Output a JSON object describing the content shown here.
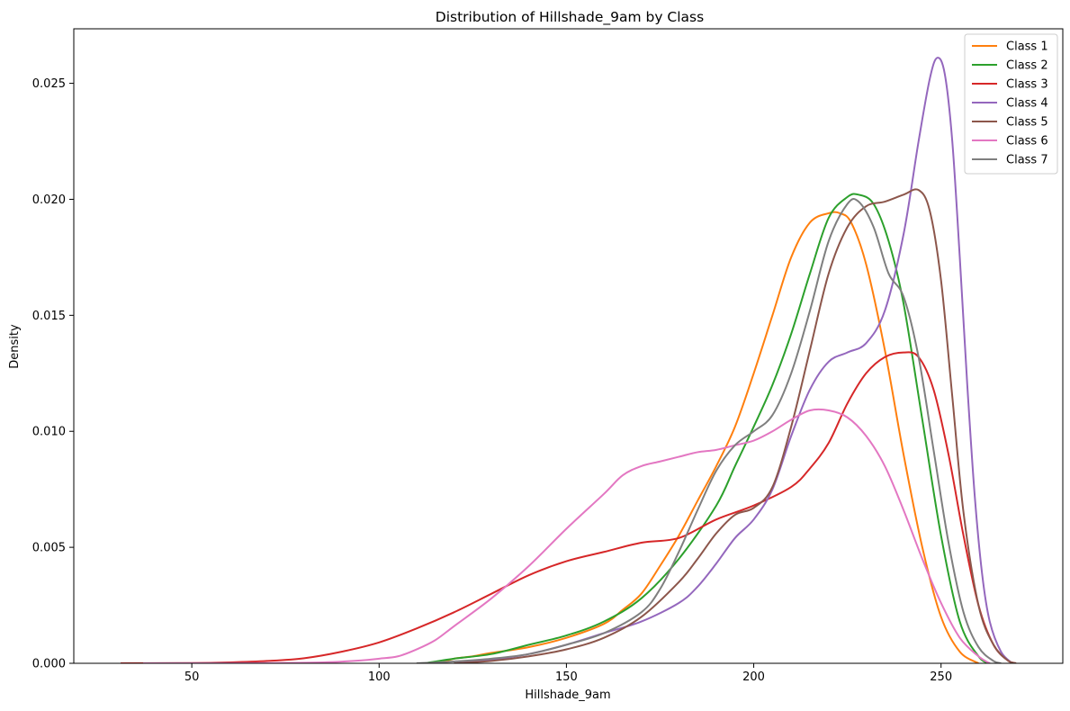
{
  "chart_data": {
    "type": "line",
    "title": "Distribution of Hillshade_9am by Class",
    "xlabel": "Hillshade_9am",
    "ylabel": "Density",
    "xlim": [
      18.5,
      282.5
    ],
    "ylim": [
      0,
      0.02735
    ],
    "xticks": [
      50,
      100,
      150,
      200,
      250
    ],
    "xtick_labels": [
      "50",
      "100",
      "150",
      "200",
      "250"
    ],
    "yticks": [
      0,
      0.005,
      0.01,
      0.015,
      0.02,
      0.025
    ],
    "ytick_labels": [
      "0.000",
      "0.005",
      "0.010",
      "0.015",
      "0.020",
      "0.025"
    ],
    "grid": false,
    "legend_position": "top-right",
    "series": [
      {
        "name": "Class 1",
        "color": "#ff7f0e",
        "points": [
          [
            116,
            0
          ],
          [
            120,
            0.0002
          ],
          [
            125,
            0.0003
          ],
          [
            130,
            0.00045
          ],
          [
            140,
            0.0007
          ],
          [
            150,
            0.0011
          ],
          [
            160,
            0.0017
          ],
          [
            165,
            0.0023
          ],
          [
            170,
            0.003
          ],
          [
            175,
            0.0042
          ],
          [
            180,
            0.0055
          ],
          [
            185,
            0.007
          ],
          [
            190,
            0.0085
          ],
          [
            195,
            0.0102
          ],
          [
            200,
            0.0125
          ],
          [
            205,
            0.015
          ],
          [
            210,
            0.0175
          ],
          [
            215,
            0.019
          ],
          [
            220,
            0.0194
          ],
          [
            223,
            0.0194
          ],
          [
            226,
            0.019
          ],
          [
            230,
            0.0172
          ],
          [
            235,
            0.0135
          ],
          [
            240,
            0.009
          ],
          [
            245,
            0.005
          ],
          [
            250,
            0.002
          ],
          [
            255,
            0.0005
          ],
          [
            260,
            0
          ]
        ]
      },
      {
        "name": "Class 2",
        "color": "#2ca02c",
        "points": [
          [
            112,
            0
          ],
          [
            120,
            0.0002
          ],
          [
            130,
            0.0004
          ],
          [
            140,
            0.0008
          ],
          [
            150,
            0.0012
          ],
          [
            160,
            0.0018
          ],
          [
            170,
            0.0028
          ],
          [
            180,
            0.0045
          ],
          [
            190,
            0.0068
          ],
          [
            195,
            0.0085
          ],
          [
            200,
            0.0102
          ],
          [
            205,
            0.012
          ],
          [
            210,
            0.0142
          ],
          [
            215,
            0.0168
          ],
          [
            220,
            0.0192
          ],
          [
            225,
            0.0201
          ],
          [
            228,
            0.0202
          ],
          [
            232,
            0.0198
          ],
          [
            236,
            0.0182
          ],
          [
            240,
            0.0155
          ],
          [
            245,
            0.0105
          ],
          [
            250,
            0.0055
          ],
          [
            255,
            0.0018
          ],
          [
            260,
            0.0003
          ],
          [
            263,
            0
          ]
        ]
      },
      {
        "name": "Class 3",
        "color": "#d62728",
        "points": [
          [
            31,
            0
          ],
          [
            50,
            1e-05
          ],
          [
            60,
            4e-05
          ],
          [
            70,
            0.0001
          ],
          [
            80,
            0.00022
          ],
          [
            90,
            0.0005
          ],
          [
            100,
            0.0009
          ],
          [
            110,
            0.0015
          ],
          [
            120,
            0.0022
          ],
          [
            130,
            0.003
          ],
          [
            140,
            0.0038
          ],
          [
            150,
            0.0044
          ],
          [
            160,
            0.0048
          ],
          [
            170,
            0.0052
          ],
          [
            180,
            0.0054
          ],
          [
            190,
            0.0062
          ],
          [
            200,
            0.0068
          ],
          [
            210,
            0.0076
          ],
          [
            215,
            0.0084
          ],
          [
            220,
            0.0095
          ],
          [
            225,
            0.0112
          ],
          [
            230,
            0.0125
          ],
          [
            235,
            0.0132
          ],
          [
            240,
            0.0134
          ],
          [
            244,
            0.0132
          ],
          [
            248,
            0.0118
          ],
          [
            252,
            0.009
          ],
          [
            256,
            0.0055
          ],
          [
            260,
            0.0025
          ],
          [
            264,
            0.0008
          ],
          [
            268,
            0.0001
          ],
          [
            270,
            0
          ]
        ]
      },
      {
        "name": "Class 4",
        "color": "#9467bd",
        "points": [
          [
            120,
            0
          ],
          [
            130,
            0.00015
          ],
          [
            140,
            0.0004
          ],
          [
            150,
            0.0008
          ],
          [
            160,
            0.0013
          ],
          [
            170,
            0.0018
          ],
          [
            180,
            0.0026
          ],
          [
            185,
            0.0033
          ],
          [
            190,
            0.0043
          ],
          [
            195,
            0.0054
          ],
          [
            200,
            0.0062
          ],
          [
            205,
            0.0075
          ],
          [
            210,
            0.0098
          ],
          [
            215,
            0.0118
          ],
          [
            220,
            0.013
          ],
          [
            225,
            0.0134
          ],
          [
            230,
            0.0138
          ],
          [
            235,
            0.0152
          ],
          [
            240,
            0.0185
          ],
          [
            244,
            0.0225
          ],
          [
            247,
            0.0252
          ],
          [
            249,
            0.0261
          ],
          [
            251,
            0.0254
          ],
          [
            253,
            0.0225
          ],
          [
            255,
            0.0175
          ],
          [
            257,
            0.012
          ],
          [
            259,
            0.0072
          ],
          [
            261,
            0.0038
          ],
          [
            263,
            0.0018
          ],
          [
            266,
            0.0005
          ],
          [
            269,
            0
          ]
        ]
      },
      {
        "name": "Class 5",
        "color": "#8c564b",
        "points": [
          [
            120,
            0
          ],
          [
            130,
            0.0001
          ],
          [
            140,
            0.0003
          ],
          [
            150,
            0.0006
          ],
          [
            160,
            0.0011
          ],
          [
            170,
            0.002
          ],
          [
            180,
            0.0035
          ],
          [
            185,
            0.0045
          ],
          [
            190,
            0.0056
          ],
          [
            195,
            0.0064
          ],
          [
            200,
            0.0067
          ],
          [
            205,
            0.0076
          ],
          [
            210,
            0.0102
          ],
          [
            215,
            0.0135
          ],
          [
            220,
            0.0168
          ],
          [
            225,
            0.0188
          ],
          [
            230,
            0.0197
          ],
          [
            235,
            0.0199
          ],
          [
            240,
            0.0202
          ],
          [
            244,
            0.0204
          ],
          [
            247,
            0.0195
          ],
          [
            250,
            0.0165
          ],
          [
            253,
            0.0115
          ],
          [
            256,
            0.0065
          ],
          [
            260,
            0.0025
          ],
          [
            264,
            0.0008
          ],
          [
            268,
            0.0001
          ],
          [
            270,
            0
          ]
        ]
      },
      {
        "name": "Class 6",
        "color": "#e377c2",
        "points": [
          [
            37,
            0
          ],
          [
            70,
            1e-05
          ],
          [
            85,
            4e-05
          ],
          [
            95,
            0.00012
          ],
          [
            100,
            0.0002
          ],
          [
            105,
            0.0003
          ],
          [
            110,
            0.0006
          ],
          [
            115,
            0.001
          ],
          [
            120,
            0.0016
          ],
          [
            130,
            0.0028
          ],
          [
            140,
            0.0042
          ],
          [
            150,
            0.0058
          ],
          [
            160,
            0.0073
          ],
          [
            165,
            0.0081
          ],
          [
            170,
            0.0085
          ],
          [
            175,
            0.0087
          ],
          [
            180,
            0.0089
          ],
          [
            185,
            0.0091
          ],
          [
            190,
            0.0092
          ],
          [
            195,
            0.0094
          ],
          [
            200,
            0.0096
          ],
          [
            205,
            0.01
          ],
          [
            210,
            0.0105
          ],
          [
            215,
            0.0109
          ],
          [
            220,
            0.0109
          ],
          [
            225,
            0.0106
          ],
          [
            230,
            0.0098
          ],
          [
            235,
            0.0085
          ],
          [
            240,
            0.0066
          ],
          [
            245,
            0.0045
          ],
          [
            250,
            0.0026
          ],
          [
            255,
            0.0011
          ],
          [
            260,
            0.0003
          ],
          [
            263,
            0
          ]
        ]
      },
      {
        "name": "Class 7",
        "color": "#7f7f7f",
        "points": [
          [
            110,
            0
          ],
          [
            120,
            8e-05
          ],
          [
            130,
            0.0002
          ],
          [
            140,
            0.0004
          ],
          [
            150,
            0.0008
          ],
          [
            160,
            0.0013
          ],
          [
            170,
            0.0022
          ],
          [
            175,
            0.0032
          ],
          [
            180,
            0.0048
          ],
          [
            185,
            0.0066
          ],
          [
            190,
            0.0083
          ],
          [
            195,
            0.0094
          ],
          [
            200,
            0.01
          ],
          [
            205,
            0.0107
          ],
          [
            210,
            0.0125
          ],
          [
            215,
            0.0152
          ],
          [
            220,
            0.0182
          ],
          [
            225,
            0.0198
          ],
          [
            228,
            0.0199
          ],
          [
            232,
            0.0188
          ],
          [
            236,
            0.0168
          ],
          [
            240,
            0.0158
          ],
          [
            244,
            0.0132
          ],
          [
            248,
            0.0092
          ],
          [
            252,
            0.0052
          ],
          [
            256,
            0.0022
          ],
          [
            260,
            0.0007
          ],
          [
            264,
            0.0001
          ],
          [
            266,
            0
          ]
        ]
      }
    ]
  }
}
